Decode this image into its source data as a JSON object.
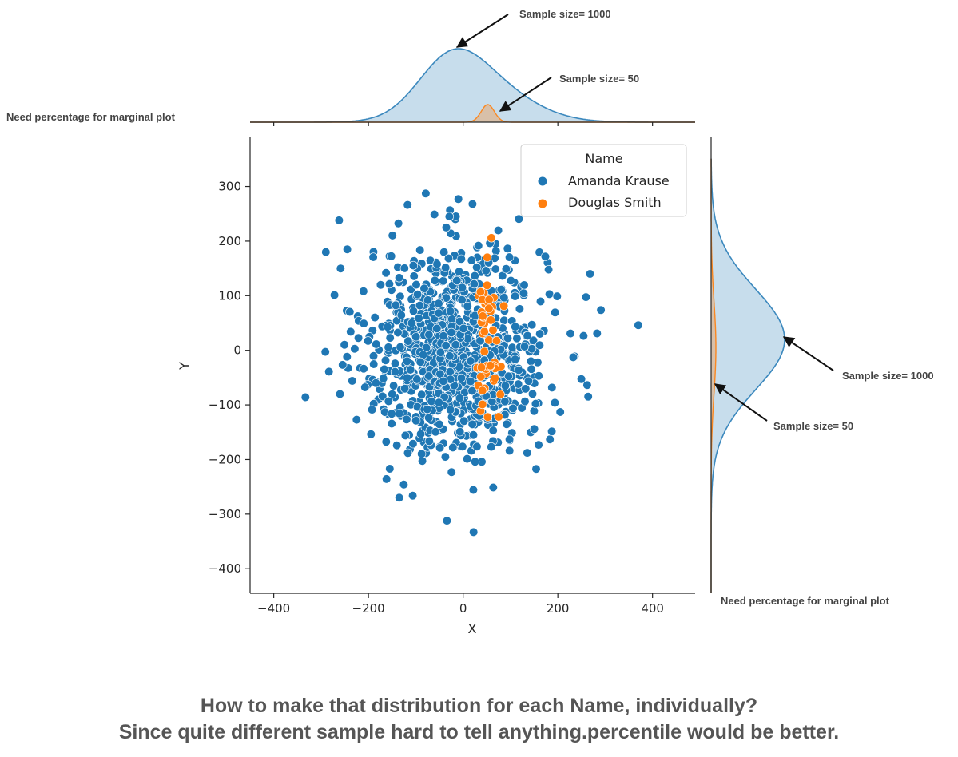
{
  "chart_data": {
    "type": "scatter",
    "subtype": "jointplot with marginal KDE",
    "xlabel": "X",
    "ylabel": "Y",
    "xlim": [
      -450,
      490
    ],
    "ylim": [
      -445,
      390
    ],
    "xticks": [
      -400,
      -200,
      0,
      200,
      400
    ],
    "yticks": [
      -400,
      -300,
      -200,
      -100,
      0,
      100,
      200,
      300
    ],
    "grid": false,
    "legend": {
      "title": "Name",
      "location": "top-right"
    },
    "series": [
      {
        "name": "Amanda Krause",
        "color": "#1f77b4",
        "n": 1000,
        "center": [
          -15,
          0
        ],
        "std": [
          95,
          95
        ]
      },
      {
        "name": "Douglas Smith",
        "color": "#ff7f0e",
        "n": 50,
        "center": [
          50,
          5
        ],
        "std": [
          14,
          85
        ]
      }
    ],
    "highlighted_points": [
      {
        "x": 370,
        "y": 46
      },
      {
        "x": -333,
        "y": -86
      },
      {
        "x": 22,
        "y": -333
      },
      {
        "x": -290,
        "y": 180
      },
      {
        "x": -262,
        "y": 238
      },
      {
        "x": 268,
        "y": 140
      },
      {
        "x": 283,
        "y": 31
      },
      {
        "x": -135,
        "y": -270
      },
      {
        "x": -10,
        "y": 277
      }
    ]
  },
  "annotations": {
    "top_big": "Sample size= 1000",
    "top_small": "Sample size= 50",
    "right_big": "Sample size= 1000",
    "right_small": "Sample size= 50",
    "left_note": "Need percentage for marginal plot",
    "right_note": "Need percentage for marginal plot"
  },
  "question": {
    "line1": "How to make that distribution for each Name, individually?",
    "line2": "Since quite different sample hard to tell anything.percentile would be better."
  }
}
